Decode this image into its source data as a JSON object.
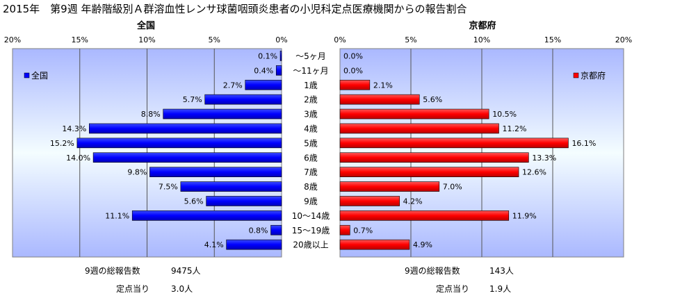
{
  "title": "2015年　第9週 年齢階級別Ａ群溶血性レンサ球菌咽頭炎患者の小児科定点医療機関からの報告割合",
  "chart_data": {
    "type": "bar",
    "orientation": "horizontal-butterfly",
    "categories": [
      "～5ヶ月",
      "～11ヶ月",
      "1歳",
      "2歳",
      "3歳",
      "4歳",
      "5歳",
      "6歳",
      "7歳",
      "8歳",
      "9歳",
      "10～14歳",
      "15～19歳",
      "20歳以上"
    ],
    "xlim": [
      0,
      20
    ],
    "ticks": [
      "0%",
      "5%",
      "10%",
      "15%",
      "20%"
    ],
    "grid": true,
    "series": [
      {
        "name": "全国",
        "panel": "left",
        "panel_title": "全国",
        "legend_position": "top-left",
        "color": "#0000ff",
        "values": [
          0.1,
          0.4,
          2.7,
          5.7,
          8.8,
          14.3,
          15.2,
          14.0,
          9.8,
          7.5,
          5.6,
          11.1,
          0.8,
          4.1
        ],
        "labels": [
          "0.1%",
          "0.4%",
          "2.7%",
          "5.7%",
          "8.8%",
          "14.3%",
          "15.2%",
          "14.0%",
          "9.8%",
          "7.5%",
          "5.6%",
          "11.1%",
          "0.8%",
          "4.1%"
        ]
      },
      {
        "name": "京都府",
        "panel": "right",
        "panel_title": "京都府",
        "legend_position": "top-right",
        "color": "#ff0000",
        "values": [
          0.0,
          0.0,
          2.1,
          5.6,
          10.5,
          11.2,
          16.1,
          13.3,
          12.6,
          7.0,
          4.2,
          11.9,
          0.7,
          4.9
        ],
        "labels": [
          "0.0%",
          "0.0%",
          "2.1%",
          "5.6%",
          "10.5%",
          "11.2%",
          "16.1%",
          "13.3%",
          "12.6%",
          "7.0%",
          "4.2%",
          "11.9%",
          "0.7%",
          "4.9%"
        ]
      }
    ]
  },
  "stats": {
    "national_total_label": "9週の総報告数",
    "national_total_value": "9475人",
    "national_per_label": "定点当り",
    "national_per_value": "3.0人",
    "kyoto_total_label": "9週の総報告数",
    "kyoto_total_value": "143人",
    "kyoto_per_label": "定点当り",
    "kyoto_per_value": "1.9人"
  }
}
